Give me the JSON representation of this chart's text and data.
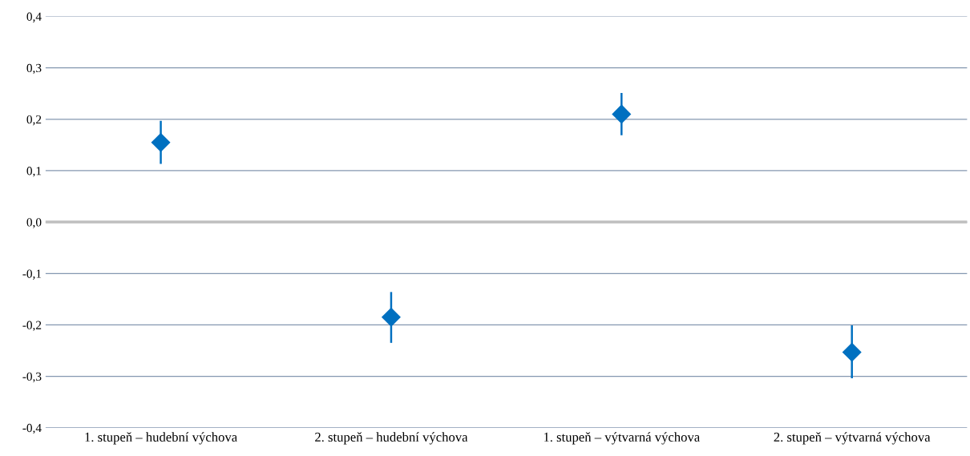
{
  "chart_data": {
    "type": "scatter",
    "categories": [
      "1. stupeň – hudební výchova",
      "2. stupeň – hudební výchova",
      "1. stupeň – výtvarná výchova",
      "2. stupeň – výtvarná výchova"
    ],
    "series": [
      {
        "color": "#0070c0",
        "values": [
          0.155,
          -0.185,
          0.21,
          -0.253
        ],
        "errors": [
          [
            0.115,
            0.195
          ],
          [
            -0.233,
            -0.138
          ],
          [
            0.171,
            0.249
          ],
          [
            -0.302,
            -0.203
          ]
        ]
      }
    ],
    "marker": "diamond",
    "ylim": [
      -0.4,
      0.4
    ],
    "yticks": [
      {
        "value": -0.4,
        "label": "-0,4"
      },
      {
        "value": -0.3,
        "label": "-0,3"
      },
      {
        "value": -0.2,
        "label": "-0,2"
      },
      {
        "value": -0.1,
        "label": "-0,1"
      },
      {
        "value": 0,
        "label": "0,0"
      },
      {
        "value": 0.1,
        "label": "0,1"
      },
      {
        "value": 0.2,
        "label": "0,2"
      },
      {
        "value": 0.3,
        "label": "0,3"
      },
      {
        "value": 0.4,
        "label": "0,4"
      }
    ],
    "grid": "y",
    "ref_lines": [
      {
        "axis": "y",
        "value": 0,
        "color": "#bfbfbf"
      }
    ]
  }
}
